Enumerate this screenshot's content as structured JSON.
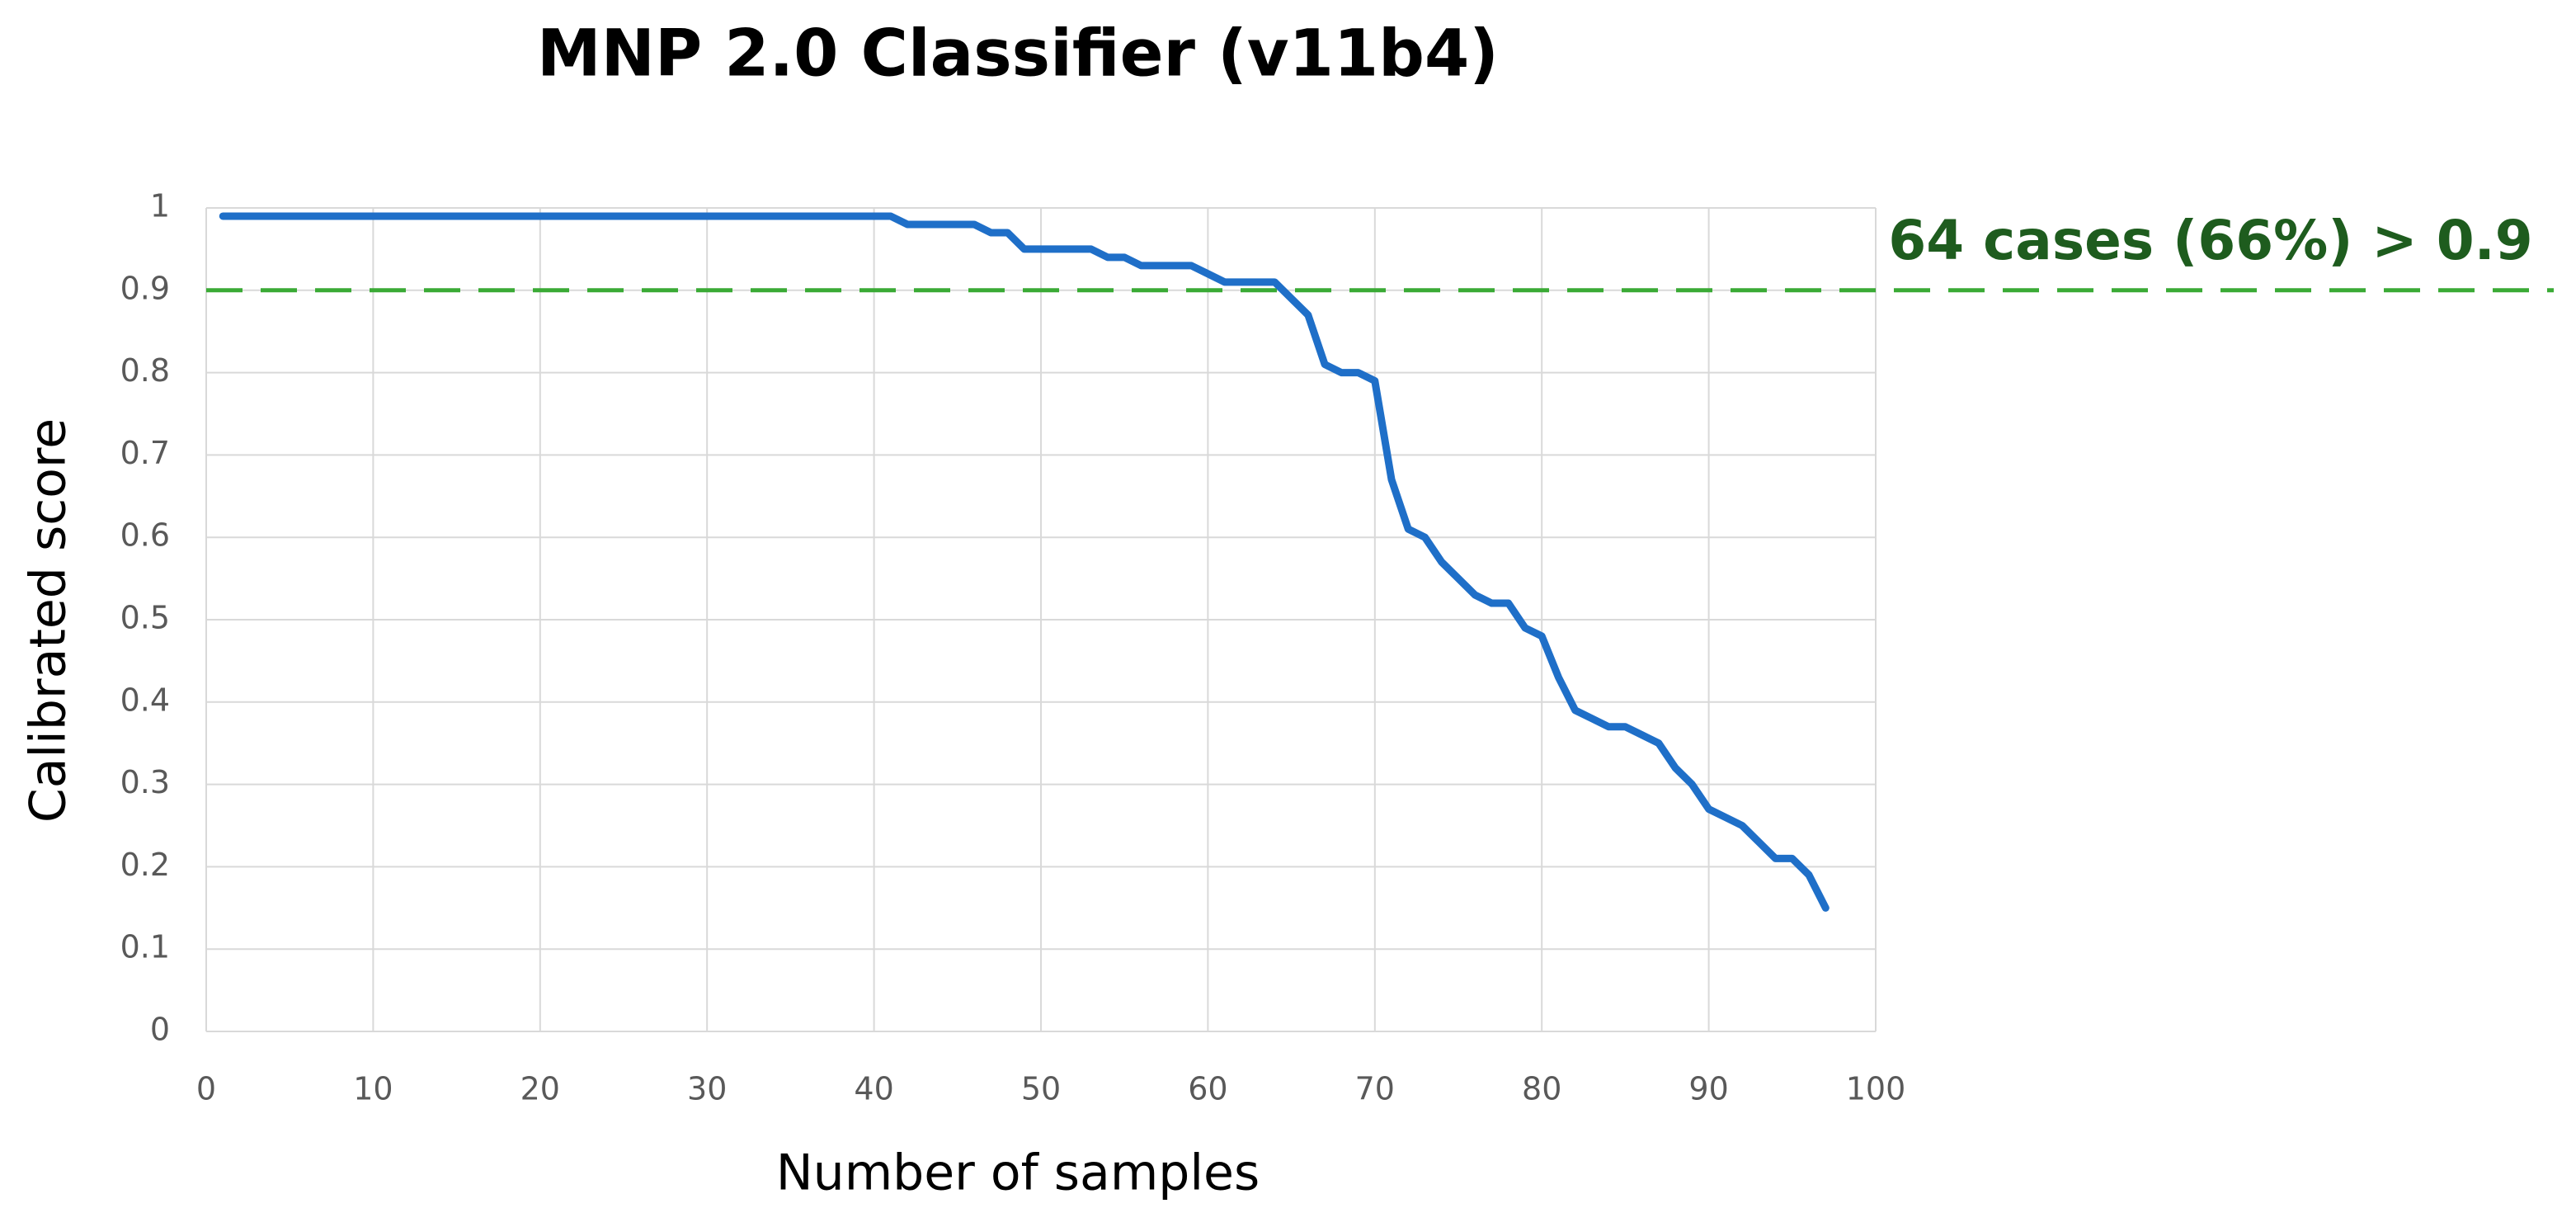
{
  "chart_data": {
    "type": "line",
    "title": "MNP 2.0 Classifier (v11b4)",
    "x_label": "Number of samples",
    "y_label": "Calibrated score",
    "x": [
      1,
      2,
      3,
      4,
      5,
      6,
      7,
      8,
      9,
      10,
      11,
      12,
      13,
      14,
      15,
      16,
      17,
      18,
      19,
      20,
      21,
      22,
      23,
      24,
      25,
      26,
      27,
      28,
      29,
      30,
      31,
      32,
      33,
      34,
      35,
      36,
      37,
      38,
      39,
      40,
      41,
      42,
      43,
      44,
      45,
      46,
      47,
      48,
      49,
      50,
      51,
      52,
      53,
      54,
      55,
      56,
      57,
      58,
      59,
      60,
      61,
      62,
      63,
      64,
      65,
      66,
      67,
      68,
      69,
      70,
      71,
      72,
      73,
      74,
      75,
      76,
      77,
      78,
      79,
      80,
      81,
      82,
      83,
      84,
      85,
      86,
      87,
      88,
      89,
      90,
      91,
      92,
      93,
      94,
      95,
      96,
      97
    ],
    "series": [
      {
        "color": "#1f6fc8",
        "values": [
          0.99,
          0.99,
          0.99,
          0.99,
          0.99,
          0.99,
          0.99,
          0.99,
          0.99,
          0.99,
          0.99,
          0.99,
          0.99,
          0.99,
          0.99,
          0.99,
          0.99,
          0.99,
          0.99,
          0.99,
          0.99,
          0.99,
          0.99,
          0.99,
          0.99,
          0.99,
          0.99,
          0.99,
          0.99,
          0.99,
          0.99,
          0.99,
          0.99,
          0.99,
          0.99,
          0.99,
          0.99,
          0.99,
          0.99,
          0.99,
          0.99,
          0.98,
          0.98,
          0.98,
          0.98,
          0.98,
          0.97,
          0.97,
          0.95,
          0.95,
          0.95,
          0.95,
          0.95,
          0.94,
          0.94,
          0.93,
          0.93,
          0.93,
          0.93,
          0.92,
          0.91,
          0.91,
          0.91,
          0.91,
          0.89,
          0.87,
          0.81,
          0.8,
          0.8,
          0.79,
          0.67,
          0.61,
          0.6,
          0.57,
          0.55,
          0.53,
          0.52,
          0.52,
          0.49,
          0.48,
          0.43,
          0.39,
          0.38,
          0.37,
          0.37,
          0.36,
          0.35,
          0.32,
          0.3,
          0.27,
          0.26,
          0.25,
          0.23,
          0.21,
          0.21,
          0.19,
          0.15
        ]
      }
    ],
    "xlim": [
      0,
      100
    ],
    "xticks": [
      0,
      10,
      20,
      30,
      40,
      50,
      60,
      70,
      80,
      90,
      100
    ],
    "ylim": [
      0,
      1
    ],
    "yticks": [
      0,
      0.1,
      0.2,
      0.3,
      0.4,
      0.5,
      0.6,
      0.7,
      0.8,
      0.9,
      1
    ],
    "grid": true,
    "reference_line": {
      "value": 0.9,
      "color": "#3aaa35",
      "label": "64 cases (66%) > 0.9",
      "label_color": "#1e5c1e"
    }
  }
}
